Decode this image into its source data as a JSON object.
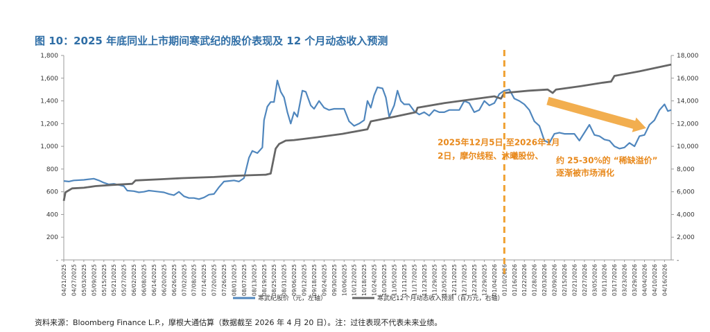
{
  "figure": {
    "title": "图 10：2025 年底同业上市期间寒武纪的股价表现及 12 个月动态收入预测",
    "source": "资料来源：Bloomberg Finance L.P.，摩根大通估算（数据截至 2026 年 4 月 20 日）。注：过往表现不代表未来业绩。"
  },
  "colors": {
    "title": "#2f6ea6",
    "price": "#4f86bd",
    "revenue": "#666666",
    "accent": "#f0a030",
    "annotation": "#e8891c"
  },
  "chart_data": {
    "type": "line",
    "x_tick_labels": [
      "04/21/2025",
      "04/27/2025",
      "05/03/2025",
      "05/09/2025",
      "05/15/2025",
      "05/21/2025",
      "05/27/2025",
      "06/02/2025",
      "06/08/2025",
      "06/14/2025",
      "06/20/2025",
      "06/26/2025",
      "07/02/2025",
      "07/08/2025",
      "07/14/2025",
      "07/20/2025",
      "07/26/2025",
      "08/01/2025",
      "08/07/2025",
      "08/13/2025",
      "08/19/2025",
      "08/25/2025",
      "08/31/2025",
      "09/06/2025",
      "09/12/2025",
      "09/18/2025",
      "09/24/2025",
      "09/30/2025",
      "10/06/2025",
      "10/12/2025",
      "10/18/2025",
      "10/24/2025",
      "10/30/2025",
      "11/05/2025",
      "11/11/2025",
      "11/17/2025",
      "11/23/2025",
      "11/29/2025",
      "12/05/2025",
      "12/11/2025",
      "12/17/2025",
      "12/23/2025",
      "12/29/2025",
      "01/04/2026",
      "01/10/2026",
      "01/16/2026",
      "01/22/2026",
      "01/28/2026",
      "02/03/2026",
      "02/09/2026",
      "02/15/2026",
      "02/21/2026",
      "02/27/2026",
      "03/05/2026",
      "03/11/2026",
      "03/17/2026",
      "03/23/2026",
      "03/29/2026",
      "04/04/2026",
      "04/10/2026",
      "04/16/2026"
    ],
    "x_range": [
      "2025-04-21",
      "2026-04-20"
    ],
    "y_left": {
      "min": 0,
      "max": 1800,
      "ticks": [
        "-",
        "200",
        "400",
        "600",
        "800",
        "1,000",
        "1,200",
        "1,400",
        "1,600",
        "1,800"
      ]
    },
    "y_right": {
      "min": 0,
      "max": 18000,
      "ticks": [
        "-",
        "2,000",
        "4,000",
        "6,000",
        "8,000",
        "10,000",
        "12,000",
        "14,000",
        "16,000",
        "18,000"
      ]
    },
    "grid": false,
    "legend_position": "bottom",
    "series": [
      {
        "name": "寒武纪股价（元，左轴）",
        "axis": "left",
        "points": [
          [
            "2025-04-21",
            695
          ],
          [
            "2025-04-24",
            690
          ],
          [
            "2025-04-27",
            700
          ],
          [
            "2025-05-03",
            705
          ],
          [
            "2025-05-09",
            715
          ],
          [
            "2025-05-12",
            700
          ],
          [
            "2025-05-15",
            680
          ],
          [
            "2025-05-18",
            665
          ],
          [
            "2025-05-21",
            670
          ],
          [
            "2025-05-24",
            660
          ],
          [
            "2025-05-27",
            650
          ],
          [
            "2025-05-29",
            610
          ],
          [
            "2025-06-02",
            605
          ],
          [
            "2025-06-05",
            595
          ],
          [
            "2025-06-08",
            600
          ],
          [
            "2025-06-11",
            610
          ],
          [
            "2025-06-14",
            605
          ],
          [
            "2025-06-17",
            600
          ],
          [
            "2025-06-20",
            595
          ],
          [
            "2025-06-23",
            580
          ],
          [
            "2025-06-26",
            570
          ],
          [
            "2025-06-29",
            600
          ],
          [
            "2025-07-02",
            560
          ],
          [
            "2025-07-05",
            545
          ],
          [
            "2025-07-08",
            545
          ],
          [
            "2025-07-11",
            535
          ],
          [
            "2025-07-14",
            550
          ],
          [
            "2025-07-17",
            575
          ],
          [
            "2025-07-20",
            580
          ],
          [
            "2025-07-23",
            640
          ],
          [
            "2025-07-26",
            690
          ],
          [
            "2025-07-29",
            695
          ],
          [
            "2025-08-01",
            700
          ],
          [
            "2025-08-04",
            690
          ],
          [
            "2025-08-07",
            720
          ],
          [
            "2025-08-10",
            900
          ],
          [
            "2025-08-12",
            960
          ],
          [
            "2025-08-15",
            940
          ],
          [
            "2025-08-18",
            990
          ],
          [
            "2025-08-19",
            1230
          ],
          [
            "2025-08-21",
            1350
          ],
          [
            "2025-08-23",
            1390
          ],
          [
            "2025-08-25",
            1390
          ],
          [
            "2025-08-27",
            1580
          ],
          [
            "2025-08-29",
            1480
          ],
          [
            "2025-08-31",
            1430
          ],
          [
            "2025-09-02",
            1300
          ],
          [
            "2025-09-04",
            1200
          ],
          [
            "2025-09-06",
            1300
          ],
          [
            "2025-09-08",
            1260
          ],
          [
            "2025-09-11",
            1490
          ],
          [
            "2025-09-13",
            1480
          ],
          [
            "2025-09-16",
            1360
          ],
          [
            "2025-09-18",
            1330
          ],
          [
            "2025-09-21",
            1400
          ],
          [
            "2025-09-24",
            1340
          ],
          [
            "2025-09-27",
            1320
          ],
          [
            "2025-09-30",
            1330
          ],
          [
            "2025-10-03",
            1330
          ],
          [
            "2025-10-06",
            1330
          ],
          [
            "2025-10-09",
            1220
          ],
          [
            "2025-10-12",
            1180
          ],
          [
            "2025-10-15",
            1200
          ],
          [
            "2025-10-18",
            1230
          ],
          [
            "2025-10-20",
            1400
          ],
          [
            "2025-10-22",
            1340
          ],
          [
            "2025-10-24",
            1450
          ],
          [
            "2025-10-26",
            1520
          ],
          [
            "2025-10-29",
            1510
          ],
          [
            "2025-10-31",
            1430
          ],
          [
            "2025-11-02",
            1260
          ],
          [
            "2025-11-05",
            1360
          ],
          [
            "2025-11-07",
            1490
          ],
          [
            "2025-11-09",
            1400
          ],
          [
            "2025-11-11",
            1370
          ],
          [
            "2025-11-14",
            1370
          ],
          [
            "2025-11-17",
            1310
          ],
          [
            "2025-11-20",
            1280
          ],
          [
            "2025-11-23",
            1300
          ],
          [
            "2025-11-26",
            1270
          ],
          [
            "2025-11-29",
            1320
          ],
          [
            "2025-12-02",
            1300
          ],
          [
            "2025-12-05",
            1300
          ],
          [
            "2025-12-08",
            1320
          ],
          [
            "2025-12-11",
            1320
          ],
          [
            "2025-12-14",
            1320
          ],
          [
            "2025-12-17",
            1400
          ],
          [
            "2025-12-20",
            1380
          ],
          [
            "2025-12-23",
            1300
          ],
          [
            "2025-12-26",
            1320
          ],
          [
            "2025-12-29",
            1400
          ],
          [
            "2026-01-01",
            1360
          ],
          [
            "2026-01-04",
            1380
          ],
          [
            "2026-01-07",
            1460
          ],
          [
            "2026-01-10",
            1490
          ],
          [
            "2026-01-13",
            1500
          ],
          [
            "2026-01-16",
            1420
          ],
          [
            "2026-01-19",
            1400
          ],
          [
            "2026-01-22",
            1370
          ],
          [
            "2026-01-25",
            1320
          ],
          [
            "2026-01-28",
            1220
          ],
          [
            "2026-01-31",
            1180
          ],
          [
            "2026-02-03",
            1050
          ],
          [
            "2026-02-06",
            1030
          ],
          [
            "2026-02-09",
            1110
          ],
          [
            "2026-02-12",
            1120
          ],
          [
            "2026-02-15",
            1110
          ],
          [
            "2026-02-18",
            1110
          ],
          [
            "2026-02-21",
            1110
          ],
          [
            "2026-02-24",
            1050
          ],
          [
            "2026-02-27",
            1120
          ],
          [
            "2026-03-02",
            1190
          ],
          [
            "2026-03-05",
            1100
          ],
          [
            "2026-03-08",
            1090
          ],
          [
            "2026-03-11",
            1060
          ],
          [
            "2026-03-14",
            1050
          ],
          [
            "2026-03-17",
            1000
          ],
          [
            "2026-03-20",
            980
          ],
          [
            "2026-03-23",
            990
          ],
          [
            "2026-03-26",
            1030
          ],
          [
            "2026-03-29",
            1000
          ],
          [
            "2026-04-01",
            1090
          ],
          [
            "2026-04-04",
            1100
          ],
          [
            "2026-04-07",
            1190
          ],
          [
            "2026-04-10",
            1230
          ],
          [
            "2026-04-13",
            1320
          ],
          [
            "2026-04-16",
            1370
          ],
          [
            "2026-04-18",
            1310
          ],
          [
            "2026-04-20",
            1320
          ]
        ]
      },
      {
        "name": "寒武纪12个月动态收入预测（百万元，右轴）",
        "axis": "right",
        "points": [
          [
            "2025-04-21",
            5200
          ],
          [
            "2025-04-22",
            5950
          ],
          [
            "2025-04-26",
            6300
          ],
          [
            "2025-05-03",
            6350
          ],
          [
            "2025-05-10",
            6500
          ],
          [
            "2025-05-20",
            6600
          ],
          [
            "2025-06-01",
            6700
          ],
          [
            "2025-06-03",
            7000
          ],
          [
            "2025-06-18",
            7100
          ],
          [
            "2025-07-01",
            7200
          ],
          [
            "2025-07-20",
            7300
          ],
          [
            "2025-08-01",
            7400
          ],
          [
            "2025-08-10",
            7450
          ],
          [
            "2025-08-20",
            7500
          ],
          [
            "2025-08-23",
            7600
          ],
          [
            "2025-08-26",
            9800
          ],
          [
            "2025-08-28",
            10200
          ],
          [
            "2025-09-01",
            10500
          ],
          [
            "2025-09-06",
            10550
          ],
          [
            "2025-09-20",
            10800
          ],
          [
            "2025-10-05",
            11100
          ],
          [
            "2025-10-20",
            11500
          ],
          [
            "2025-10-22",
            12200
          ],
          [
            "2025-11-05",
            12600
          ],
          [
            "2025-11-18",
            13000
          ],
          [
            "2025-11-19",
            13400
          ],
          [
            "2025-12-05",
            13800
          ],
          [
            "2025-12-20",
            14100
          ],
          [
            "2026-01-04",
            14400
          ],
          [
            "2026-01-08",
            14200
          ],
          [
            "2026-01-10",
            14700
          ],
          [
            "2026-01-25",
            14900
          ],
          [
            "2026-02-05",
            15000
          ],
          [
            "2026-02-08",
            14700
          ],
          [
            "2026-02-10",
            15000
          ],
          [
            "2026-02-25",
            15300
          ],
          [
            "2026-03-10",
            15600
          ],
          [
            "2026-03-15",
            15700
          ],
          [
            "2026-03-17",
            16200
          ],
          [
            "2026-04-01",
            16600
          ],
          [
            "2026-04-20",
            17200
          ]
        ]
      }
    ],
    "event_date": "2026-01-10",
    "annotations": [
      {
        "text": "2025年12月5日 至2026年1月",
        "anchor_date": "2025-12-01",
        "anchor_value": 10100
      },
      {
        "text": "2日，摩尔线程、沐曦股份、",
        "anchor_date": "2025-12-01",
        "anchor_value": 8900
      },
      {
        "text": "约 25-30%的 “稀缺溢价”",
        "anchor_date": "2026-02-10",
        "anchor_value": 8500
      },
      {
        "text": "逐渐被市场消化",
        "anchor_date": "2026-02-10",
        "anchor_value": 7400
      }
    ],
    "trend_arrow": {
      "from": [
        "2026-02-05",
        14000
      ],
      "to": [
        "2026-04-05",
        11600
      ]
    }
  }
}
